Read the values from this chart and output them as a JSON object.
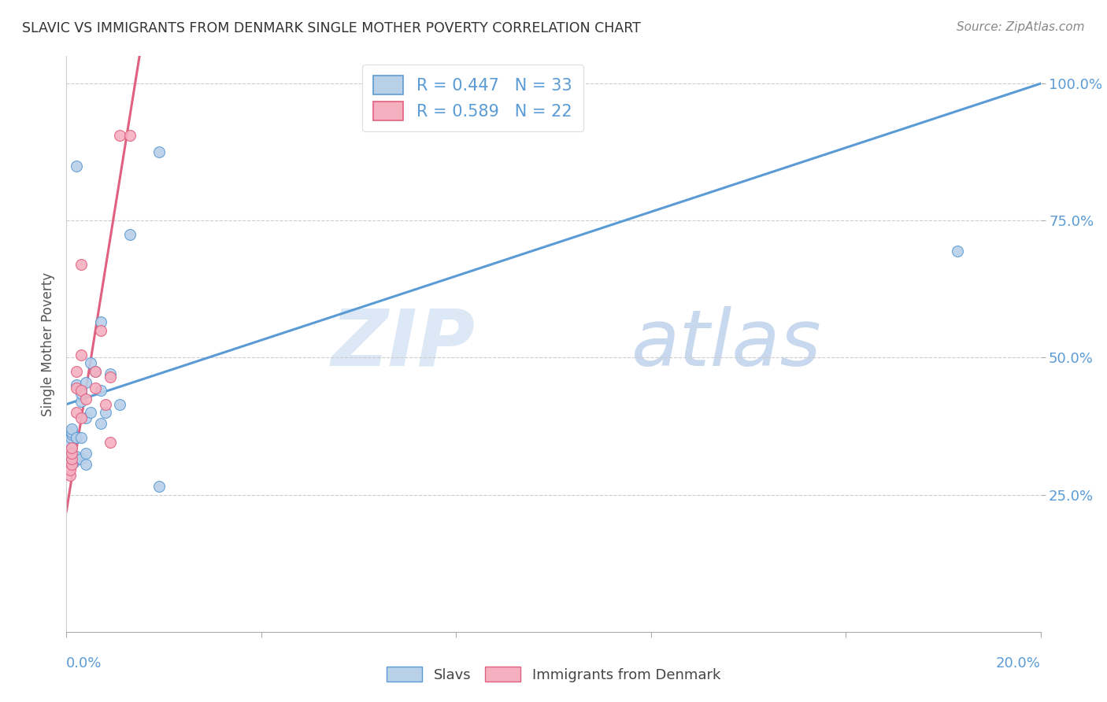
{
  "title": "SLAVIC VS IMMIGRANTS FROM DENMARK SINGLE MOTHER POVERTY CORRELATION CHART",
  "source": "Source: ZipAtlas.com",
  "ylabel": "Single Mother Poverty",
  "legend_slavs": "R = 0.447   N = 33",
  "legend_denmark": "R = 0.589   N = 22",
  "legend_label_slavs": "Slavs",
  "legend_label_denmark": "Immigrants from Denmark",
  "color_slavs": "#b8d0e8",
  "color_denmark": "#f5b0c0",
  "color_line_slavs": "#5b9bd5",
  "color_line_denmark": "#e06080",
  "color_axis_labels": "#5b9bd5",
  "color_title": "#333333",
  "color_source": "#888888",
  "color_grid": "#cccccc",
  "color_watermark": "#dce8f5",
  "slavs_x": [
    0.0008,
    0.0008,
    0.0009,
    0.001,
    0.001,
    0.001,
    0.0015,
    0.002,
    0.002,
    0.002,
    0.002,
    0.002,
    0.003,
    0.003,
    0.003,
    0.003,
    0.004,
    0.004,
    0.004,
    0.004,
    0.005,
    0.005,
    0.006,
    0.007,
    0.007,
    0.007,
    0.008,
    0.009,
    0.011,
    0.013,
    0.019,
    0.019,
    0.183
  ],
  "slavs_y": [
    0.32,
    0.345,
    0.355,
    0.36,
    0.365,
    0.37,
    0.31,
    0.315,
    0.32,
    0.355,
    0.45,
    0.85,
    0.315,
    0.355,
    0.42,
    0.435,
    0.305,
    0.325,
    0.39,
    0.455,
    0.4,
    0.49,
    0.475,
    0.38,
    0.44,
    0.565,
    0.4,
    0.47,
    0.415,
    0.725,
    0.265,
    0.875,
    0.695
  ],
  "denmark_x": [
    0.0007,
    0.0008,
    0.001,
    0.001,
    0.001,
    0.001,
    0.002,
    0.002,
    0.002,
    0.003,
    0.003,
    0.003,
    0.003,
    0.004,
    0.006,
    0.006,
    0.007,
    0.008,
    0.009,
    0.009,
    0.011,
    0.013
  ],
  "denmark_y": [
    0.285,
    0.295,
    0.305,
    0.315,
    0.325,
    0.335,
    0.4,
    0.445,
    0.475,
    0.39,
    0.44,
    0.505,
    0.67,
    0.425,
    0.445,
    0.475,
    0.55,
    0.415,
    0.345,
    0.465,
    0.905,
    0.905
  ],
  "slavs_line_x": [
    0.0,
    0.2
  ],
  "slavs_line_y": [
    0.415,
    1.0
  ],
  "denmark_line_x": [
    0.0,
    0.015
  ],
  "denmark_line_y": [
    0.22,
    1.05
  ],
  "xmin": 0.0,
  "xmax": 0.2,
  "ymin": 0.0,
  "ymax": 1.05,
  "xtick_positions": [
    0.0,
    0.04,
    0.08,
    0.12,
    0.16,
    0.2
  ],
  "ytick_positions": [
    0.25,
    0.5,
    0.75,
    1.0
  ],
  "ytick_labels": [
    "25.0%",
    "50.0%",
    "75.0%",
    "100.0%"
  ],
  "marker_size": 100,
  "watermark_zip": "ZIP",
  "watermark_atlas": "atlas"
}
